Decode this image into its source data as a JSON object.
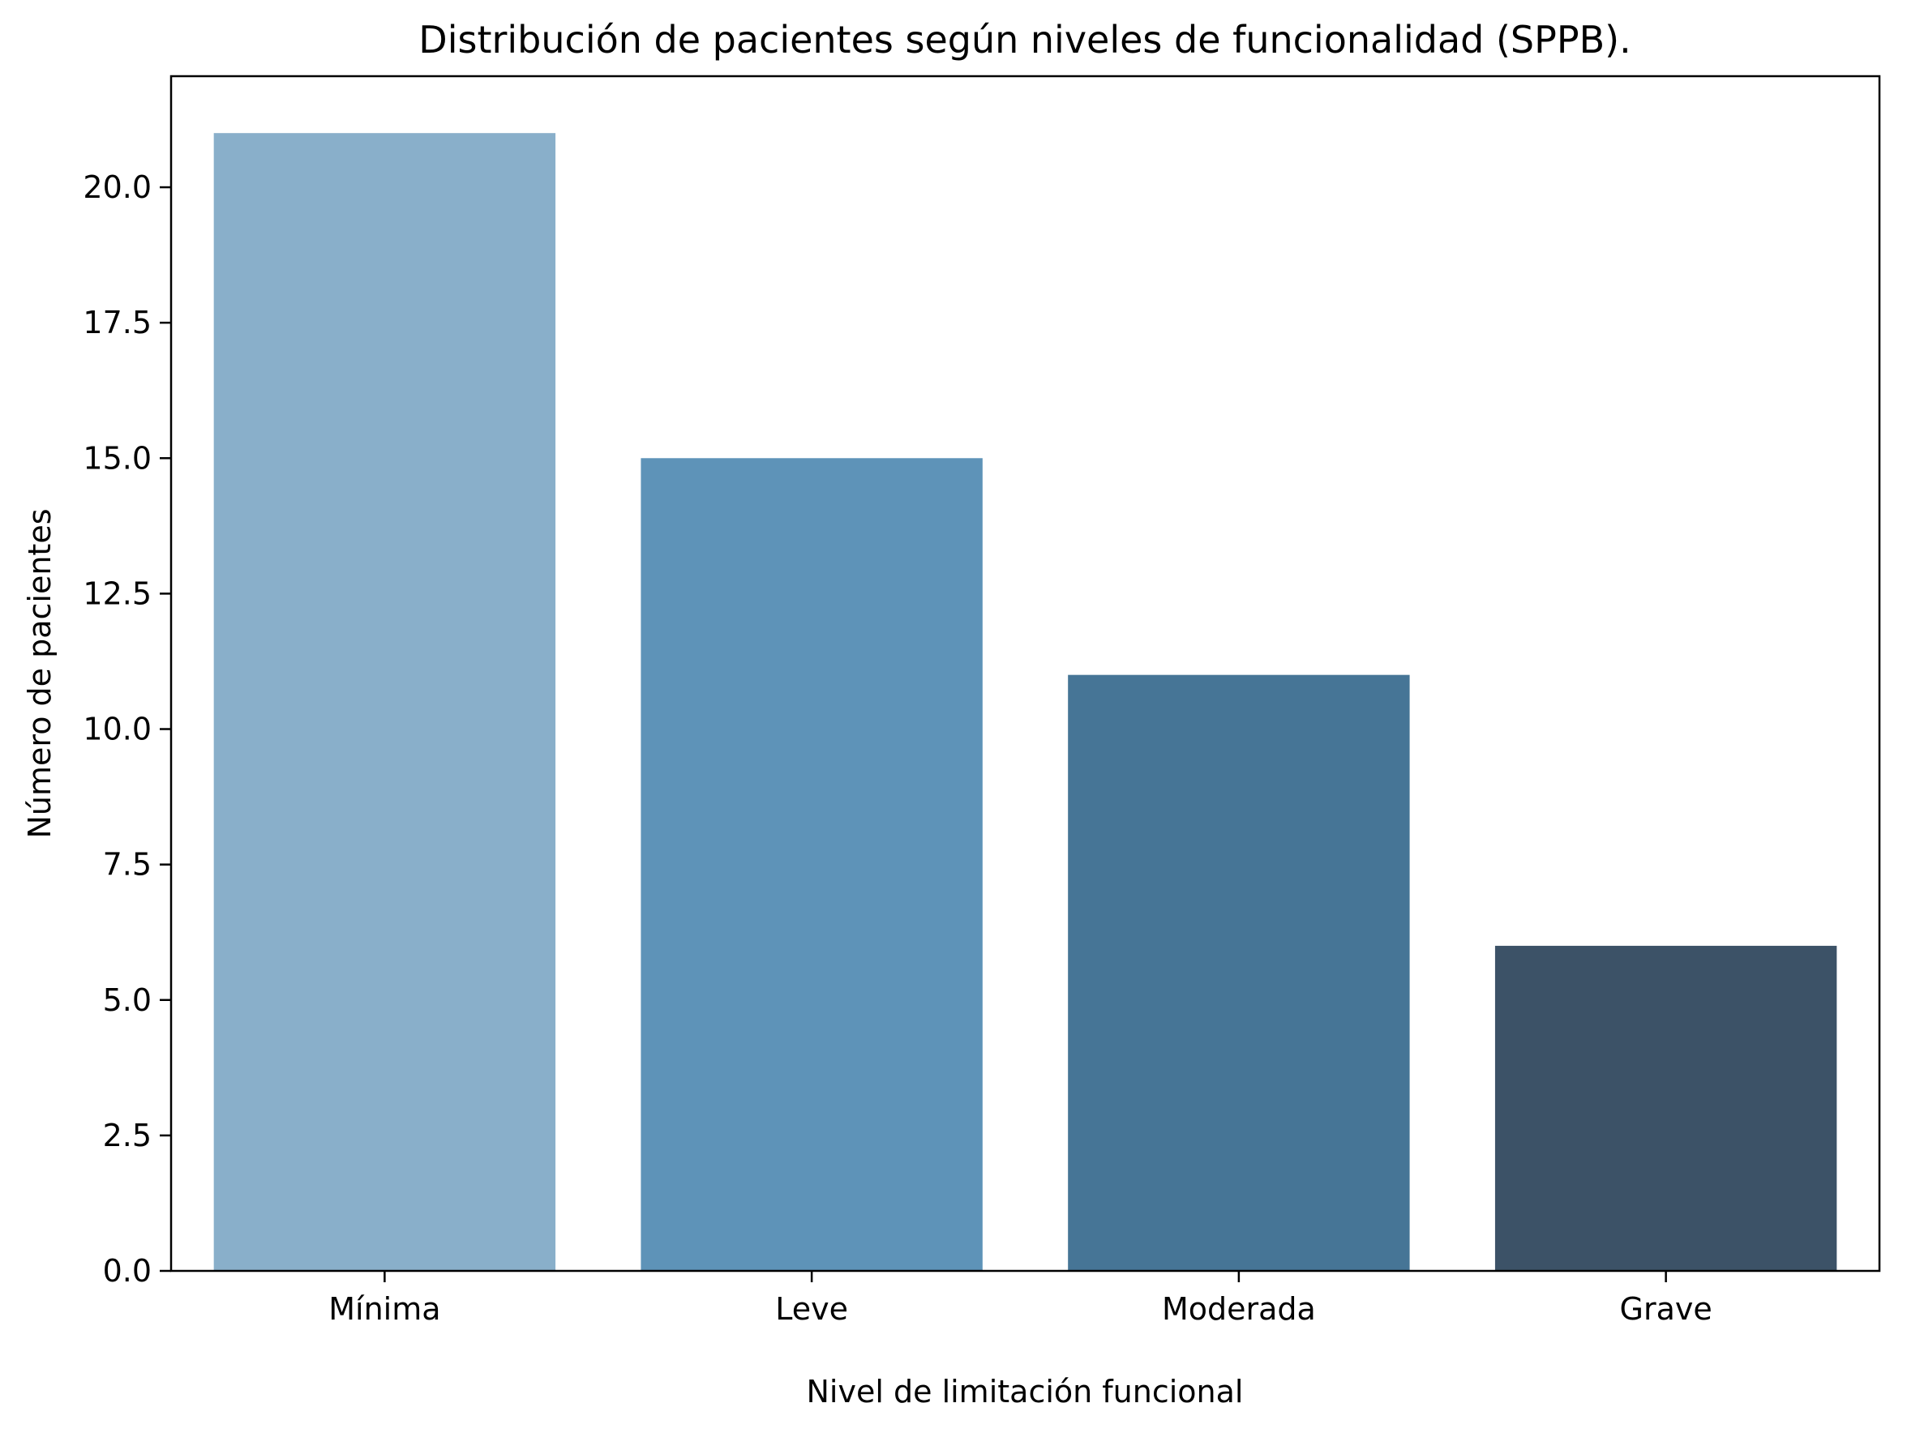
{
  "chart_data": {
    "type": "bar",
    "title": "Distribución de pacientes según niveles de funcionalidad (SPPB).",
    "xlabel": "Nivel de limitación funcional",
    "ylabel": "Número de pacientes",
    "categories": [
      "Mínima",
      "Leve",
      "Moderada",
      "Grave"
    ],
    "values": [
      21,
      15,
      11,
      6
    ],
    "colors": [
      "#89afca",
      "#5e93b8",
      "#467596",
      "#3c5267"
    ],
    "ylim": [
      0,
      22.05
    ],
    "yticks": [
      0.0,
      2.5,
      5.0,
      7.5,
      10.0,
      12.5,
      15.0,
      17.5,
      20.0
    ],
    "ytick_labels": [
      "0.0",
      "2.5",
      "5.0",
      "7.5",
      "10.0",
      "12.5",
      "15.0",
      "17.5",
      "20.0"
    ],
    "grid": false,
    "legend": "none"
  }
}
